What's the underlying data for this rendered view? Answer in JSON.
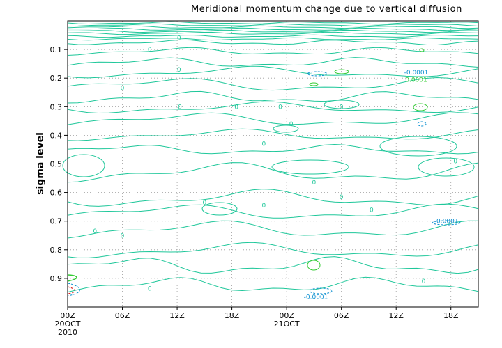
{
  "chart_data": {
    "type": "contour",
    "title": "Meridional momentum change due to vertical diffusion",
    "ylabel": "sigma level",
    "xlabel": "",
    "x_ticks": [
      {
        "label": "00Z",
        "sub1": "20OCT",
        "sub2": "2010",
        "hours": 0
      },
      {
        "label": "06Z",
        "sub1": "",
        "sub2": "",
        "hours": 6
      },
      {
        "label": "12Z",
        "sub1": "",
        "sub2": "",
        "hours": 12
      },
      {
        "label": "18Z",
        "sub1": "",
        "sub2": "",
        "hours": 18
      },
      {
        "label": "00Z",
        "sub1": "21OCT",
        "sub2": "",
        "hours": 24
      },
      {
        "label": "06Z",
        "sub1": "",
        "sub2": "",
        "hours": 30
      },
      {
        "label": "12Z",
        "sub1": "",
        "sub2": "",
        "hours": 36
      },
      {
        "label": "18Z",
        "sub1": "",
        "sub2": "",
        "hours": 42
      }
    ],
    "x_range_hours": [
      0,
      45
    ],
    "y_ticks": [
      0.1,
      0.2,
      0.3,
      0.4,
      0.5,
      0.6,
      0.7,
      0.8,
      0.9
    ],
    "y_range": [
      0.0,
      1.0
    ],
    "y_inverted": true,
    "grid": true,
    "levels": [
      {
        "value": -0.0001,
        "color": "#0a8fd0",
        "dashed": true
      },
      {
        "value": 0,
        "color": "#1fc79a",
        "dashed": false
      },
      {
        "value": 0.0001,
        "color": "#33cc33",
        "dashed": false
      }
    ],
    "contour_labels": [
      {
        "text": "-0.0001",
        "hours": 38.2,
        "sigma": 0.18,
        "color": "#0a8fd0"
      },
      {
        "text": "0.0001",
        "hours": 38.2,
        "sigma": 0.205,
        "color": "#33cc33"
      },
      {
        "text": "-0.0001",
        "hours": 41.5,
        "sigma": 0.7,
        "color": "#0a8fd0"
      },
      {
        "text": "-0.0001",
        "hours": 27.2,
        "sigma": 0.965,
        "color": "#0a8fd0"
      },
      {
        "text": "0",
        "hours": 9.0,
        "sigma": 0.1,
        "color": "#1fc79a"
      },
      {
        "text": "0",
        "hours": 12.2,
        "sigma": 0.06,
        "color": "#1fc79a"
      },
      {
        "text": "0",
        "hours": 12.2,
        "sigma": 0.17,
        "color": "#1fc79a"
      },
      {
        "text": "0",
        "hours": 6.0,
        "sigma": 0.235,
        "color": "#1fc79a"
      },
      {
        "text": "0",
        "hours": 12.3,
        "sigma": 0.3,
        "color": "#1fc79a"
      },
      {
        "text": "0",
        "hours": 18.5,
        "sigma": 0.3,
        "color": "#1fc79a"
      },
      {
        "text": "0",
        "hours": 23.3,
        "sigma": 0.3,
        "color": "#1fc79a"
      },
      {
        "text": "0",
        "hours": 30.0,
        "sigma": 0.3,
        "color": "#1fc79a"
      },
      {
        "text": "0",
        "hours": 24.5,
        "sigma": 0.36,
        "color": "#1fc79a"
      },
      {
        "text": "0",
        "hours": 21.5,
        "sigma": 0.43,
        "color": "#1fc79a"
      },
      {
        "text": "0",
        "hours": 42.5,
        "sigma": 0.49,
        "color": "#1fc79a"
      },
      {
        "text": "0",
        "hours": 27.0,
        "sigma": 0.565,
        "color": "#1fc79a"
      },
      {
        "text": "0",
        "hours": 30.0,
        "sigma": 0.615,
        "color": "#1fc79a"
      },
      {
        "text": "0",
        "hours": 15.0,
        "sigma": 0.635,
        "color": "#1fc79a"
      },
      {
        "text": "0",
        "hours": 21.5,
        "sigma": 0.645,
        "color": "#1fc79a"
      },
      {
        "text": "0",
        "hours": 33.3,
        "sigma": 0.66,
        "color": "#1fc79a"
      },
      {
        "text": "0",
        "hours": 3.0,
        "sigma": 0.735,
        "color": "#1fc79a"
      },
      {
        "text": "0",
        "hours": 6.0,
        "sigma": 0.75,
        "color": "#1fc79a"
      },
      {
        "text": "0",
        "hours": 9.0,
        "sigma": 0.935,
        "color": "#1fc79a"
      },
      {
        "text": "0",
        "hours": 39.0,
        "sigma": 0.91,
        "color": "#1fc79a"
      }
    ]
  }
}
